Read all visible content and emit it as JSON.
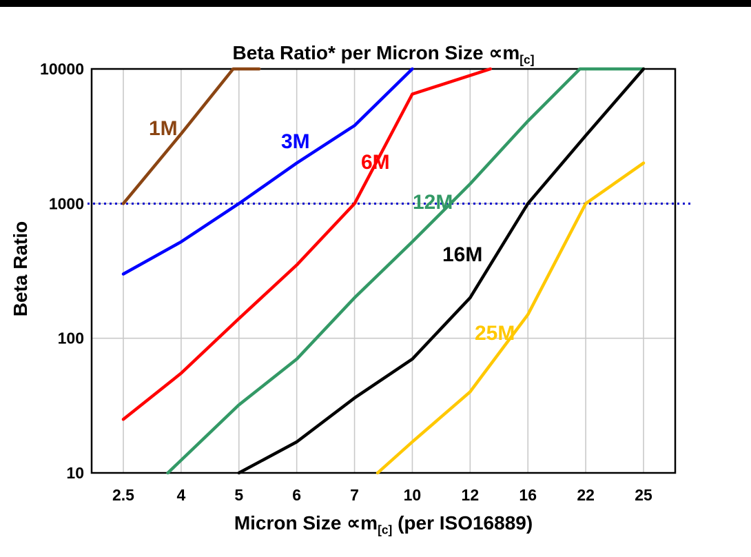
{
  "header": {
    "title_prefix": "Beta Ratio* per Micron Size ∝m",
    "title_sub": "[c]"
  },
  "axis": {
    "xlabel_prefix": "Micron Size ∝m",
    "xlabel_sub": "[c]",
    "xlabel_suffix": " (per ISO16889)"
  },
  "chart_data": {
    "type": "line",
    "title": "Beta Ratio* per Micron Size ∝m[c]",
    "xlabel": "Micron Size ∝m[c] (per ISO16889)",
    "ylabel": "Beta Ratio",
    "y_scale": "log",
    "ylim": [
      10,
      10000
    ],
    "y_ticks": [
      "10",
      "100",
      "1000",
      "10000"
    ],
    "x_categories": [
      "2.5",
      "4",
      "5",
      "6",
      "7",
      "10",
      "12",
      "16",
      "22",
      "25"
    ],
    "x_axis_note": "x values in series points are positions on the equally-spaced categorical axis: 0 = tick '2.5' ... 9 = tick '25'; fractional positions lie between ticks",
    "grid": true,
    "grid_color": "#c9c9c9",
    "legend_position": "in-plot labels next to each line",
    "reference_line": {
      "y": 1000,
      "style": "dotted",
      "color": "#0000cc"
    },
    "series": [
      {
        "name": "1M",
        "color": "#8B4513",
        "points": [
          [
            0,
            1000
          ],
          [
            1,
            3300
          ],
          [
            1.9,
            10000
          ],
          [
            2.35,
            10000
          ]
        ]
      },
      {
        "name": "3M",
        "color": "#0000FF",
        "points": [
          [
            0,
            300
          ],
          [
            1,
            520
          ],
          [
            2,
            1000
          ],
          [
            3,
            2000
          ],
          [
            4,
            3800
          ],
          [
            5,
            10000
          ]
        ]
      },
      {
        "name": "6M",
        "color": "#FF0000",
        "points": [
          [
            0,
            25
          ],
          [
            1,
            55
          ],
          [
            2,
            140
          ],
          [
            3,
            350
          ],
          [
            4,
            1000
          ],
          [
            5,
            6500
          ],
          [
            6.35,
            10000
          ]
        ]
      },
      {
        "name": "12M",
        "color": "#339966",
        "points": [
          [
            0.77,
            10
          ],
          [
            2,
            32
          ],
          [
            3,
            70
          ],
          [
            4,
            200
          ],
          [
            5,
            520
          ],
          [
            6,
            1400
          ],
          [
            7,
            4100
          ],
          [
            7.9,
            10000
          ],
          [
            9,
            10000
          ]
        ]
      },
      {
        "name": "16M",
        "color": "#000000",
        "points": [
          [
            2,
            10
          ],
          [
            3,
            17
          ],
          [
            4,
            36
          ],
          [
            5,
            70
          ],
          [
            6,
            200
          ],
          [
            7,
            1000
          ],
          [
            8,
            3200
          ],
          [
            9,
            10000
          ]
        ]
      },
      {
        "name": "25M",
        "color": "#FFC800",
        "points": [
          [
            4.4,
            10
          ],
          [
            5,
            17
          ],
          [
            6,
            40
          ],
          [
            7,
            150
          ],
          [
            8,
            1000
          ],
          [
            9,
            2000
          ]
        ]
      }
    ]
  }
}
